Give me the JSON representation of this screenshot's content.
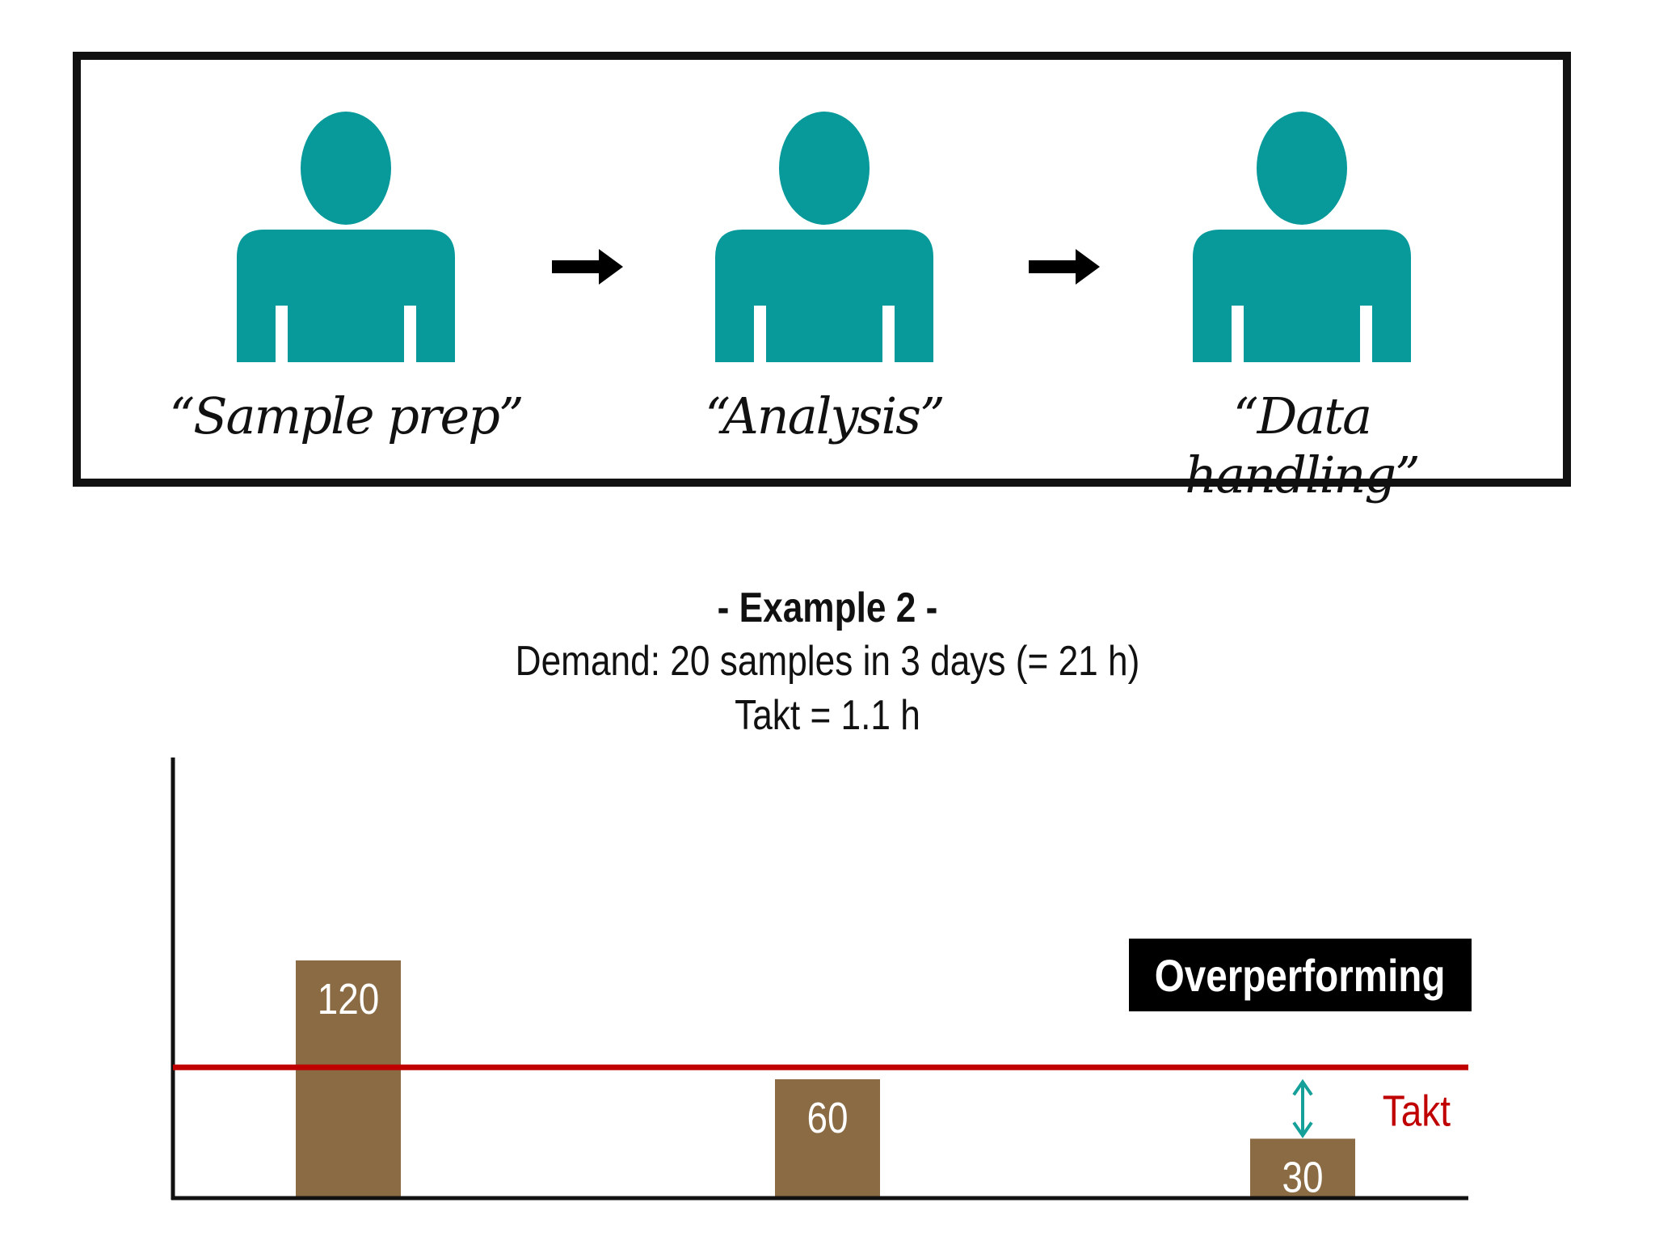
{
  "process": {
    "steps": [
      {
        "label": "“Sample prep”",
        "icon": "person-icon"
      },
      {
        "label": "“Analysis”",
        "icon": "person-icon"
      },
      {
        "label": "“Data handling”",
        "icon": "person-icon"
      }
    ],
    "flow_icon": "right-arrow-icon",
    "person_color": "#08999a"
  },
  "heading": "- Example 2 -",
  "demand": "Demand: 20 samples in 3 days (= 21 h)",
  "takt_text": "Takt = 1.1 h",
  "badge": "Overperforming",
  "chart_data": {
    "type": "bar",
    "values": [
      120,
      60,
      30
    ],
    "value_labels": [
      "120",
      "60",
      "30"
    ],
    "bar_color": "#8a6b44",
    "reference_line": {
      "label": "Takt",
      "value": 66,
      "color": "#c00000"
    },
    "gap_arrow_color": "#16a09a",
    "ylim": [
      0,
      150
    ]
  }
}
